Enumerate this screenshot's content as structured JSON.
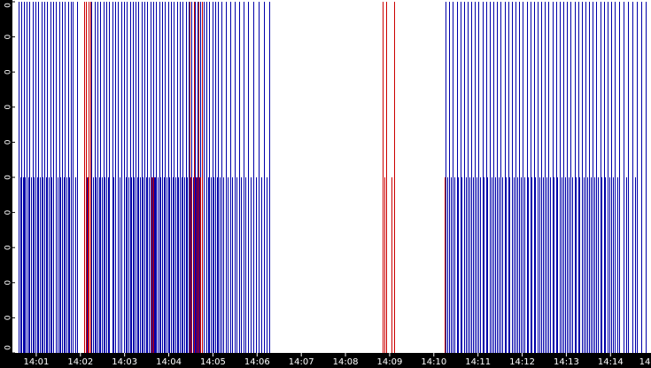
{
  "chart_data": {
    "type": "bar",
    "title": "",
    "xlabel": "",
    "ylabel": "",
    "grid": false,
    "colors": {
      "background": "#ffffff",
      "axis": "#000000",
      "blue": "#0000aa",
      "red": "#cc0000"
    },
    "xlim": [
      "14:00:30",
      "14:14:55"
    ],
    "ylim": [
      0,
      10
    ],
    "y_tick_labels": [
      "0",
      "0",
      "0",
      "0",
      "0",
      "0",
      "0",
      "0",
      "0",
      "0",
      "0"
    ],
    "x_ticks": [
      {
        "label": "14:01",
        "t": "14:01:00"
      },
      {
        "label": "14:02",
        "t": "14:02:00"
      },
      {
        "label": "14:03",
        "t": "14:03:00"
      },
      {
        "label": "14:04",
        "t": "14:04:00"
      },
      {
        "label": "14:05",
        "t": "14:05:00"
      },
      {
        "label": "14:06",
        "t": "14:06:00"
      },
      {
        "label": "14:07",
        "t": "14:07:00"
      },
      {
        "label": "14:08",
        "t": "14:08:00"
      },
      {
        "label": "14:09",
        "t": "14:09:00"
      },
      {
        "label": "14:10",
        "t": "14:10:00"
      },
      {
        "label": "14:11",
        "t": "14:11:00"
      },
      {
        "label": "14:12",
        "t": "14:12:00"
      },
      {
        "label": "14:13",
        "t": "14:13:00"
      },
      {
        "label": "14:14",
        "t": "14:14:00"
      },
      {
        "label": "14",
        "t": "14:15:00"
      }
    ],
    "series": [
      {
        "color": "blue",
        "height": 10,
        "times": [
          "14:00:36",
          "14:00:40",
          "14:00:43",
          "14:00:47",
          "14:00:51",
          "14:00:55",
          "14:00:59",
          "14:01:03",
          "14:01:07",
          "14:01:11",
          "14:01:15",
          "14:01:19",
          "14:01:23",
          "14:01:27",
          "14:01:31",
          "14:01:35",
          "14:01:39",
          "14:01:43",
          "14:01:47",
          "14:01:50",
          "14:01:55",
          "14:02:15",
          "14:02:19",
          "14:02:23",
          "14:02:27",
          "14:02:31",
          "14:02:35",
          "14:02:39",
          "14:02:43",
          "14:02:47",
          "14:02:51",
          "14:02:55",
          "14:02:59",
          "14:03:03",
          "14:03:07",
          "14:03:11",
          "14:03:15",
          "14:03:19",
          "14:03:23",
          "14:03:27",
          "14:03:31",
          "14:03:35",
          "14:03:39",
          "14:03:43",
          "14:03:47",
          "14:03:51",
          "14:03:55",
          "14:03:59",
          "14:04:03",
          "14:04:07",
          "14:04:11",
          "14:04:15",
          "14:04:19",
          "14:04:23",
          "14:04:27",
          "14:04:31",
          "14:04:35",
          "14:04:39",
          "14:04:43",
          "14:04:47",
          "14:04:51",
          "14:04:55",
          "14:04:59",
          "14:05:03",
          "14:05:07",
          "14:05:11",
          "14:05:17",
          "14:05:23",
          "14:05:29",
          "14:05:35",
          "14:05:41",
          "14:05:48",
          "14:05:55",
          "14:06:02",
          "14:06:09",
          "14:06:17",
          "14:10:16",
          "14:10:21",
          "14:10:26",
          "14:10:31",
          "14:10:36",
          "14:10:41",
          "14:10:46",
          "14:10:51",
          "14:10:56",
          "14:11:01",
          "14:11:06",
          "14:11:11",
          "14:11:16",
          "14:11:21",
          "14:11:26",
          "14:11:31",
          "14:11:36",
          "14:11:41",
          "14:11:46",
          "14:11:51",
          "14:11:56",
          "14:12:01",
          "14:12:06",
          "14:12:11",
          "14:12:16",
          "14:12:21",
          "14:12:26",
          "14:12:31",
          "14:12:36",
          "14:12:41",
          "14:12:46",
          "14:12:51",
          "14:12:56",
          "14:13:01",
          "14:13:06",
          "14:13:11",
          "14:13:16",
          "14:13:21",
          "14:13:26",
          "14:13:31",
          "14:13:36",
          "14:13:41",
          "14:13:46",
          "14:13:51",
          "14:13:56",
          "14:14:01",
          "14:14:06",
          "14:14:12",
          "14:14:18",
          "14:14:24",
          "14:14:30",
          "14:14:36",
          "14:14:42",
          "14:14:48"
        ]
      },
      {
        "color": "blue",
        "height": 5,
        "times": [
          "14:00:38",
          "14:00:42",
          "14:00:45",
          "14:00:49",
          "14:00:53",
          "14:00:57",
          "14:01:01",
          "14:01:05",
          "14:01:09",
          "14:01:13",
          "14:01:17",
          "14:01:21",
          "14:01:29",
          "14:01:33",
          "14:01:37",
          "14:01:41",
          "14:01:45",
          "14:01:53",
          "14:02:09",
          "14:02:13",
          "14:02:17",
          "14:02:21",
          "14:02:25",
          "14:02:29",
          "14:02:33",
          "14:02:37",
          "14:02:45",
          "14:02:53",
          "14:03:01",
          "14:03:05",
          "14:03:09",
          "14:03:13",
          "14:03:17",
          "14:03:21",
          "14:03:25",
          "14:03:29",
          "14:03:33",
          "14:03:37",
          "14:03:41",
          "14:03:45",
          "14:03:49",
          "14:03:53",
          "14:03:57",
          "14:04:01",
          "14:04:05",
          "14:04:09",
          "14:04:13",
          "14:04:17",
          "14:04:21",
          "14:04:25",
          "14:04:29",
          "14:04:33",
          "14:04:37",
          "14:04:41",
          "14:04:45",
          "14:04:53",
          "14:04:57",
          "14:05:01",
          "14:05:05",
          "14:05:09",
          "14:05:14",
          "14:05:20",
          "14:05:26",
          "14:05:32",
          "14:05:38",
          "14:05:44",
          "14:05:51",
          "14:05:58",
          "14:06:06",
          "14:06:13",
          "14:10:18",
          "14:10:23",
          "14:10:28",
          "14:10:33",
          "14:10:38",
          "14:10:43",
          "14:10:48",
          "14:10:53",
          "14:10:58",
          "14:11:03",
          "14:11:08",
          "14:11:13",
          "14:11:18",
          "14:11:23",
          "14:11:28",
          "14:11:33",
          "14:11:38",
          "14:11:43",
          "14:11:48",
          "14:11:53",
          "14:11:58",
          "14:12:03",
          "14:12:08",
          "14:12:13",
          "14:12:18",
          "14:12:23",
          "14:12:28",
          "14:12:33",
          "14:12:38",
          "14:12:43",
          "14:12:48",
          "14:12:53",
          "14:12:58",
          "14:13:03",
          "14:13:08",
          "14:13:13",
          "14:13:18",
          "14:13:23",
          "14:13:28",
          "14:13:33",
          "14:13:38",
          "14:13:43",
          "14:13:48",
          "14:13:53",
          "14:13:58",
          "14:14:03",
          "14:14:09",
          "14:14:21",
          "14:14:33"
        ]
      },
      {
        "color": "blue",
        "height": 5,
        "times": [
          "14:03:36",
          "14:03:37",
          "14:03:38",
          "14:03:39",
          "14:03:40",
          "14:03:41"
        ]
      },
      {
        "color": "red",
        "height": 10,
        "times": [
          "14:02:05",
          "14:02:08",
          "14:02:11",
          "14:02:14",
          "14:04:28",
          "14:04:34",
          "14:04:40",
          "14:04:45",
          "14:08:51",
          "14:08:55",
          "14:09:06"
        ]
      },
      {
        "color": "red",
        "height": 5,
        "times": [
          "14:02:07",
          "14:02:10",
          "14:03:37",
          "14:03:39",
          "14:04:31",
          "14:04:38",
          "14:04:43",
          "14:08:53",
          "14:09:03",
          "14:10:15"
        ]
      }
    ]
  }
}
